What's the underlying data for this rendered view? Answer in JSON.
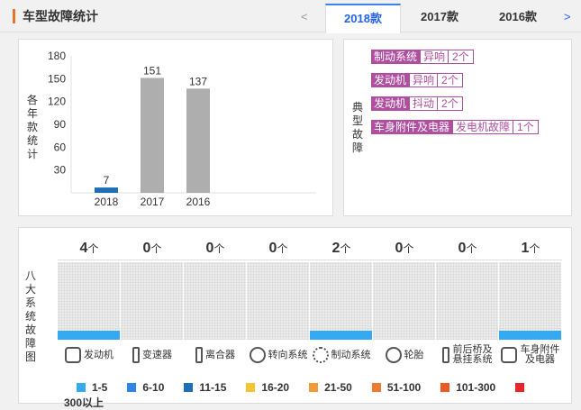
{
  "header": {
    "title": "车型故障统计",
    "prev": "<",
    "next": ">",
    "tabs": [
      {
        "label": "2018款",
        "active": true
      },
      {
        "label": "2017款",
        "active": false
      },
      {
        "label": "2016款",
        "active": false
      }
    ]
  },
  "chart_data": {
    "type": "bar",
    "categories": [
      "2018",
      "2017",
      "2016"
    ],
    "values": [
      7,
      151,
      137
    ],
    "ylabel": "各年款统计",
    "yticks": [
      180,
      150,
      120,
      90,
      60,
      30
    ],
    "ylim": [
      0,
      180
    ],
    "colors": [
      "#1f6fb5",
      "#aeaeae",
      "#aeaeae"
    ]
  },
  "faults": {
    "label": "典型故障",
    "items": [
      {
        "system": "制动系统",
        "issue": "异响",
        "count": "2个"
      },
      {
        "system": "发动机",
        "issue": "异响",
        "count": "2个"
      },
      {
        "system": "发动机",
        "issue": "抖动",
        "count": "2个"
      },
      {
        "system": "车身附件及电器",
        "issue": "发电机故障",
        "count": "1个"
      }
    ]
  },
  "systems": {
    "label": "八大系统故障图",
    "unit": "个",
    "items": [
      {
        "name": "发动机",
        "count": 4,
        "icon": "engine-icon"
      },
      {
        "name": "变速器",
        "count": 0,
        "icon": "gearshift-icon"
      },
      {
        "name": "离合器",
        "count": 0,
        "icon": "clutch-icon"
      },
      {
        "name": "转向系统",
        "count": 0,
        "icon": "steering-wheel-icon"
      },
      {
        "name": "制动系统",
        "count": 2,
        "icon": "brake-disc-icon"
      },
      {
        "name": "轮胎",
        "count": 0,
        "icon": "tire-icon"
      },
      {
        "name": "前后桥及悬挂系统",
        "count": 0,
        "icon": "suspension-icon"
      },
      {
        "name": "车身附件及电器",
        "count": 1,
        "icon": "body-electric-icon"
      }
    ],
    "legend": [
      {
        "label": "1-5",
        "color": "#33aaf3"
      },
      {
        "label": "6-10",
        "color": "#2f86ea"
      },
      {
        "label": "11-15",
        "color": "#1f6fb5"
      },
      {
        "label": "16-20",
        "color": "#f7c331"
      },
      {
        "label": "21-50",
        "color": "#f39a36"
      },
      {
        "label": "51-100",
        "color": "#ee7b30"
      },
      {
        "label": "101-300",
        "color": "#ec5a23"
      },
      {
        "label": "300以上",
        "color": "#e8252a"
      }
    ]
  }
}
